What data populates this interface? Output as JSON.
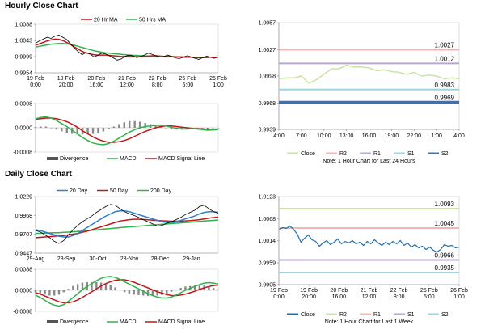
{
  "hourly": {
    "title": "Hourly Close Chart",
    "price": {
      "legend": [
        "20 Hr MA",
        "50 Hrs MA"
      ],
      "yticks": [
        "1.0088",
        "1.0043",
        "0.9999",
        "0.9954"
      ],
      "ylim": [
        0.9954,
        1.0088
      ],
      "xticks": [
        [
          "19 Feb",
          "0:00"
        ],
        [
          "19 Feb",
          "20:00"
        ],
        [
          "20 Feb",
          "16:00"
        ],
        [
          "21 Feb",
          "12:00"
        ],
        [
          "22 Feb",
          "8:00"
        ],
        [
          "25 Feb",
          "5:00"
        ],
        [
          "26 Feb",
          "1:00"
        ]
      ],
      "series": {
        "close": [
          1.0036,
          1.0042,
          1.0047,
          1.0052,
          1.0049,
          1.0055,
          1.0058,
          1.0052,
          1.0046,
          1.0034,
          1.0022,
          1.0012,
          1.0004,
          1.001,
          1.0006,
          0.9998,
          1.0002,
          1.0008,
          1.0006,
          1.0001,
          0.9995,
          0.9989,
          0.9992,
          0.9999,
          1.0003,
          1.0001,
          0.9996,
          0.9999,
          1.0003,
          1.0008,
          1.0005,
          1.0001,
          0.9997,
          0.9999,
          1.0003,
          0.9999,
          0.9995,
          0.9993,
          0.9997,
          1.0001,
          0.9998,
          0.9994,
          0.9991,
          0.9996,
          1.0,
          0.9997,
          0.9994,
          0.9998
        ],
        "ma20": [
          1.003,
          1.0034,
          1.0038,
          1.0042,
          1.0045,
          1.0047,
          1.0046,
          1.0043,
          1.0038,
          1.0032,
          1.0025,
          1.0019,
          1.0013,
          1.0009,
          1.0006,
          1.0004,
          1.0003,
          1.0003,
          1.0003,
          1.0002,
          1.0001,
          1.0,
          0.9999,
          0.9999,
          0.9999,
          0.9999,
          0.9998,
          0.9998,
          0.9999,
          1.0,
          1.0001,
          1.0001,
          1.0,
          0.9999,
          0.9999,
          0.9999,
          0.9998,
          0.9998,
          0.9997,
          0.9997,
          0.9997,
          0.9996,
          0.9996,
          0.9996,
          0.9996,
          0.9997,
          0.9997,
          0.9997
        ],
        "ma50": [
          1.0025,
          1.0027,
          1.0029,
          1.0031,
          1.0033,
          1.0034,
          1.0035,
          1.0035,
          1.0034,
          1.0032,
          1.003,
          1.0027,
          1.0024,
          1.0021,
          1.0018,
          1.0015,
          1.0013,
          1.0011,
          1.0009,
          1.0008,
          1.0007,
          1.0006,
          1.0005,
          1.0004,
          1.0003,
          1.0002,
          1.0002,
          1.0001,
          1.0001,
          1.0,
          1.0,
          0.9999,
          0.9999,
          0.9999,
          0.9999,
          0.9998,
          0.9998,
          0.9998,
          0.9998,
          0.9997,
          0.9997,
          0.9997,
          0.9997,
          0.9997,
          0.9997,
          0.9997,
          0.9997,
          0.9997
        ]
      }
    },
    "macd": {
      "yticks": [
        "0.0008",
        "0.0000",
        "-0.0008"
      ],
      "ylim": [
        -0.0008,
        0.0008
      ],
      "legend": [
        "Divergence",
        "MACD",
        "MACD Signal Line"
      ],
      "macd": [
        0.0003,
        0.00034,
        0.00036,
        0.00032,
        0.00024,
        0.00014,
        4e-05,
        -8e-05,
        -0.0002,
        -0.00032,
        -0.00042,
        -0.0005,
        -0.00054,
        -0.00056,
        -0.00052,
        -0.00044,
        -0.00034,
        -0.00024,
        -0.00014,
        -6e-05,
        0.0,
        4e-05,
        6e-05,
        8e-05,
        8e-05,
        6e-05,
        2e-05,
        -2e-05,
        -4e-05,
        -4e-05,
        -3e-05,
        -4e-05,
        -6e-05,
        -8e-05,
        -7e-05,
        -6e-05
      ],
      "signal": [
        0.00028,
        0.0003,
        0.00032,
        0.00032,
        0.0003,
        0.00026,
        0.0002,
        0.00012,
        2e-05,
        -0.0001,
        -0.0002,
        -0.0003,
        -0.00038,
        -0.00044,
        -0.00048,
        -0.00048,
        -0.00046,
        -0.00042,
        -0.00036,
        -0.00028,
        -0.0002,
        -0.00012,
        -6e-05,
        0.0,
        4e-05,
        6e-05,
        6e-05,
        4e-05,
        2e-05,
        0.0,
        -2e-05,
        -3e-05,
        -4e-05,
        -5e-05,
        -6e-05,
        -6e-05
      ],
      "divergence": [
        2e-05,
        4e-05,
        4e-05,
        0.0,
        -6e-05,
        -0.00012,
        -0.00016,
        -0.0002,
        -0.00022,
        -0.00022,
        -0.00022,
        -0.0002,
        -0.00016,
        -0.00012,
        -4e-05,
        4e-05,
        0.00012,
        0.00018,
        0.00022,
        0.00022,
        0.0002,
        0.00016,
        0.00012,
        8e-05,
        4e-05,
        0.0,
        -4e-05,
        -6e-05,
        -6e-05,
        -4e-05,
        -1e-05,
        -1e-05,
        -2e-05,
        -3e-05,
        -1e-05,
        0.0
      ]
    },
    "pivot": {
      "yticks": [
        "1.0057",
        "1.0027",
        "0.9998",
        "0.9968",
        "0.9939"
      ],
      "ylim": [
        0.9939,
        1.0057
      ],
      "xticks": [
        "4:00",
        "7:00",
        "10:00",
        "13:00",
        "16:00",
        "19:00",
        "22:00",
        "1:00",
        "4:00"
      ],
      "levels": [
        {
          "name": "R2",
          "value": 1.0027,
          "label": "1.0027",
          "color": "#f4b6b4"
        },
        {
          "name": "R1",
          "value": 1.0012,
          "label": "1.0012",
          "color": "#b9a7cf"
        },
        {
          "name": "S1",
          "value": 0.9983,
          "label": "0.9983",
          "color": "#9fd6dd"
        },
        {
          "name": "S2",
          "value": 0.9969,
          "label": "0.9969",
          "color": "#3b6fb6"
        }
      ],
      "close": [
        0.9995,
        0.9996,
        0.9996,
        0.9998,
        0.999,
        0.9994,
        1.0,
        1.0006,
        1.0006,
        1.001,
        1.0008,
        1.0008,
        1.0007,
        1.0004,
        1.0005,
        1.0003,
        1.0002,
        1.0,
        1.0002,
        0.9998,
        0.9999,
        0.9998,
        0.9995,
        0.9996,
        0.9995
      ],
      "legend": [
        "Close",
        "R2",
        "R1",
        "S1",
        "S2"
      ],
      "note": "Note: 1 Hour Chart for Last 24 Hours"
    }
  },
  "daily": {
    "title": "Daily Close Chart",
    "price": {
      "legend": [
        "20 Day",
        "50 Day",
        "200 Day"
      ],
      "yticks": [
        "1.0229",
        "0.9968",
        "0.9707",
        "0.9447"
      ],
      "ylim": [
        0.9447,
        1.0229
      ],
      "xticks": [
        "29-Aug",
        "28-Sep",
        "30-Oct",
        "28-Nov",
        "28-Dec",
        "29-Jan"
      ],
      "series": {
        "close": [
          0.976,
          0.974,
          0.97,
          0.966,
          0.961,
          0.958,
          0.962,
          0.97,
          0.977,
          0.983,
          0.988,
          0.992,
          0.996,
          1.001,
          1.005,
          1.009,
          1.012,
          1.011,
          1.006,
          1.002,
          0.999,
          0.997,
          0.994,
          0.991,
          0.988,
          0.985,
          0.982,
          0.983,
          0.986,
          0.988,
          0.991,
          0.994,
          0.998,
          1.001,
          1.004,
          1.009,
          1.011,
          1.006,
          1.002,
          1.0
        ],
        "ma20": [
          0.977,
          0.976,
          0.974,
          0.972,
          0.97,
          0.968,
          0.967,
          0.967,
          0.969,
          0.972,
          0.976,
          0.98,
          0.984,
          0.988,
          0.992,
          0.996,
          0.999,
          1.002,
          1.003,
          1.003,
          1.002,
          1.0,
          0.998,
          0.996,
          0.994,
          0.992,
          0.99,
          0.988,
          0.987,
          0.987,
          0.988,
          0.99,
          0.992,
          0.994,
          0.996,
          0.999,
          1.001,
          1.002,
          1.002,
          1.001
        ],
        "ma50": [
          0.966,
          0.9665,
          0.967,
          0.9675,
          0.968,
          0.9685,
          0.969,
          0.97,
          0.971,
          0.972,
          0.9735,
          0.975,
          0.977,
          0.979,
          0.981,
          0.983,
          0.985,
          0.987,
          0.989,
          0.99,
          0.991,
          0.9915,
          0.9915,
          0.9912,
          0.9908,
          0.9903,
          0.9898,
          0.9894,
          0.989,
          0.9888,
          0.9888,
          0.989,
          0.9893,
          0.9897,
          0.9902,
          0.991,
          0.992,
          0.993,
          0.9938,
          0.9945
        ],
        "ma200": [
          0.972,
          0.9722,
          0.9724,
          0.9726,
          0.9728,
          0.973,
          0.9734,
          0.9738,
          0.9742,
          0.9747,
          0.9752,
          0.9757,
          0.9763,
          0.9769,
          0.9775,
          0.9781,
          0.9787,
          0.9793,
          0.9799,
          0.9805,
          0.981,
          0.9815,
          0.982,
          0.9825,
          0.983,
          0.9835,
          0.984,
          0.9845,
          0.985,
          0.9855,
          0.986,
          0.9865,
          0.987,
          0.9875,
          0.988,
          0.9885,
          0.989,
          0.9895,
          0.99,
          0.9905
        ]
      }
    },
    "macd": {
      "yticks": [
        "0.0088",
        "0.0000",
        "-0.0088"
      ],
      "ylim": [
        -0.0088,
        0.0088
      ],
      "legend": [
        "Divergence",
        "MACD",
        "MACD Signal Line"
      ],
      "macd": [
        -0.002,
        -0.003,
        -0.0042,
        -0.0054,
        -0.0062,
        -0.0066,
        -0.006,
        -0.0046,
        -0.003,
        -0.0014,
        0.0002,
        0.0016,
        0.0028,
        0.004,
        0.005,
        0.0056,
        0.0058,
        0.0054,
        0.0046,
        0.0036,
        0.0026,
        0.0016,
        0.0006,
        -0.0004,
        -0.0014,
        -0.0022,
        -0.0028,
        -0.0032,
        -0.0032,
        -0.0028,
        -0.002,
        -0.001,
        0.0,
        0.0008,
        0.0016,
        0.0024,
        0.003,
        0.0032,
        0.003,
        0.0026
      ],
      "signal": [
        -0.001,
        -0.0016,
        -0.0024,
        -0.0032,
        -0.004,
        -0.0048,
        -0.0052,
        -0.0052,
        -0.0048,
        -0.004,
        -0.003,
        -0.0018,
        -0.0006,
        0.0006,
        0.0018,
        0.0028,
        0.0036,
        0.0042,
        0.0044,
        0.0044,
        0.004,
        0.0034,
        0.0026,
        0.0018,
        0.001,
        0.0002,
        -0.0006,
        -0.0012,
        -0.0018,
        -0.0022,
        -0.0022,
        -0.002,
        -0.0016,
        -0.001,
        -0.0004,
        0.0004,
        0.001,
        0.0016,
        0.002,
        0.0022
      ],
      "divergence": [
        -0.001,
        -0.0014,
        -0.0018,
        -0.0022,
        -0.0022,
        -0.0018,
        -0.0008,
        0.0006,
        0.0018,
        0.0026,
        0.0032,
        0.0034,
        0.0034,
        0.0034,
        0.0032,
        0.0028,
        0.0022,
        0.0012,
        0.0002,
        -0.0008,
        -0.0014,
        -0.0018,
        -0.002,
        -0.0022,
        -0.0024,
        -0.0024,
        -0.0022,
        -0.002,
        -0.0014,
        -0.0006,
        0.0002,
        0.001,
        0.0016,
        0.0018,
        0.002,
        0.002,
        0.002,
        0.0016,
        0.001,
        0.0004
      ]
    },
    "pivot": {
      "yticks": [
        "1.0123",
        "1.0068",
        "1.0014",
        "0.9959",
        "0.9905"
      ],
      "ylim": [
        0.9905,
        1.0123
      ],
      "xticks": [
        [
          "19 Feb",
          "0:00"
        ],
        [
          "19 Feb",
          "20:00"
        ],
        [
          "20 Feb",
          "16:00"
        ],
        [
          "21 Feb",
          "12:00"
        ],
        [
          "22 Feb",
          "8:00"
        ],
        [
          "25 Feb",
          "5:00"
        ],
        [
          "26 Feb",
          "1:00"
        ]
      ],
      "levels": [
        {
          "name": "R2",
          "value": 1.0093,
          "label": "1.0093",
          "color": "#c9e3a0"
        },
        {
          "name": "R1",
          "value": 1.0045,
          "label": "1.0045",
          "color": "#f4b6b4"
        },
        {
          "name": "S1",
          "value": 0.9966,
          "label": "0.9966",
          "color": "#b9a7cf"
        },
        {
          "name": "S2",
          "value": 0.9935,
          "label": "0.9935",
          "color": "#9fd6dd"
        }
      ],
      "close": [
        1.004,
        1.0046,
        1.0044,
        1.005,
        1.0042,
        1.003,
        1.001,
        1.002,
        1.0028,
        1.0016,
        1.0012,
        1.0,
        1.0008,
        1.0014,
        1.0004,
        1.001,
        1.0018,
        1.0006,
        1.0012,
        1.0008,
        1.0014,
        1.0006,
        1.001,
        1.0002,
        1.0012,
        1.0006,
        1.0016,
        1.0008,
        1.0002,
        1.001,
        1.0004,
        1.0012,
        1.0006,
        1.0014,
        1.0002,
        1.0008,
        0.9998,
        1.0004,
        0.9996,
        1.0,
        0.9992,
        0.9998,
        0.999,
        0.9986,
        0.9992,
        1.0004,
        1.0,
        1.0002,
        0.9996,
        0.9998
      ],
      "legend": [
        "Close",
        "R2",
        "R1",
        "S1",
        "S2"
      ],
      "note": "Note: 1 Hour Chart for Last 1 Week"
    }
  },
  "colors": {
    "close": "#000000",
    "ma20": "#c0171b",
    "ma50": "#2db34a",
    "d20": "#2f7fd0",
    "d50": "#c0171b",
    "d200": "#2db34a",
    "macd": "#2db34a",
    "signal": "#c0171b",
    "divergence": "#888888",
    "pivotCloseHourly": "#c9e3a0",
    "pivotCloseDaily": "#1f6fb0"
  }
}
